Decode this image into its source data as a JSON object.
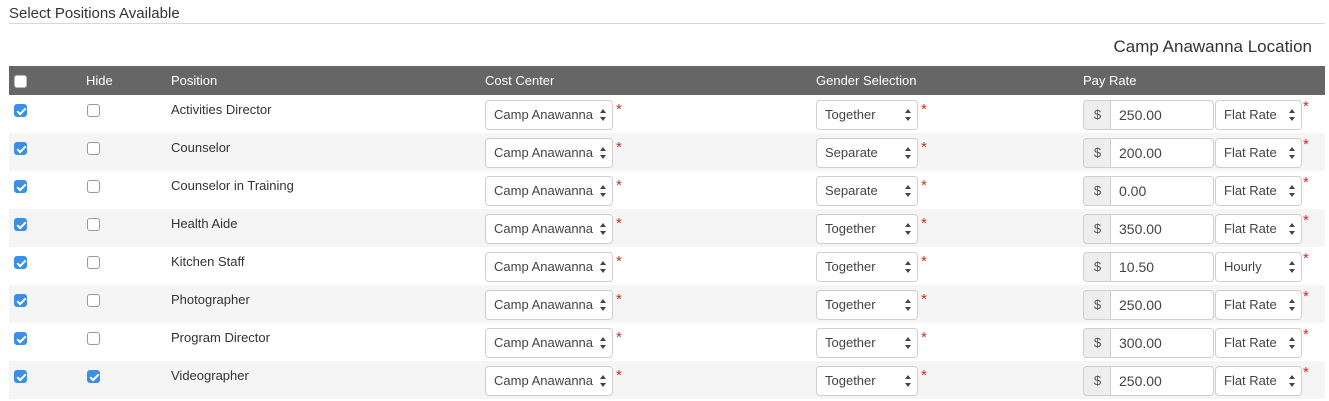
{
  "section_title": "Select Positions Available",
  "location_title": "Camp Anawanna Location",
  "columns": {
    "hide": "Hide",
    "position": "Position",
    "cost_center": "Cost Center",
    "gender": "Gender Selection",
    "pay_rate": "Pay Rate"
  },
  "select_all_checked": false,
  "currency_symbol": "$",
  "required_mark": "*",
  "rows": [
    {
      "selected": true,
      "hidden": false,
      "position": "Activities Director",
      "cost_center": "Camp Anawanna",
      "gender": "Together",
      "amount": "250.00",
      "rate_type": "Flat Rate"
    },
    {
      "selected": true,
      "hidden": false,
      "position": "Counselor",
      "cost_center": "Camp Anawanna",
      "gender": "Separate",
      "amount": "200.00",
      "rate_type": "Flat Rate"
    },
    {
      "selected": true,
      "hidden": false,
      "position": "Counselor in Training",
      "cost_center": "Camp Anawanna",
      "gender": "Separate",
      "amount": "0.00",
      "rate_type": "Flat Rate"
    },
    {
      "selected": true,
      "hidden": false,
      "position": "Health Aide",
      "cost_center": "Camp Anawanna",
      "gender": "Together",
      "amount": "350.00",
      "rate_type": "Flat Rate"
    },
    {
      "selected": true,
      "hidden": false,
      "position": "Kitchen Staff",
      "cost_center": "Camp Anawanna",
      "gender": "Together",
      "amount": "10.50",
      "rate_type": "Hourly"
    },
    {
      "selected": true,
      "hidden": false,
      "position": "Photographer",
      "cost_center": "Camp Anawanna",
      "gender": "Together",
      "amount": "250.00",
      "rate_type": "Flat Rate"
    },
    {
      "selected": true,
      "hidden": false,
      "position": "Program Director",
      "cost_center": "Camp Anawanna",
      "gender": "Together",
      "amount": "300.00",
      "rate_type": "Flat Rate"
    },
    {
      "selected": true,
      "hidden": true,
      "position": "Videographer",
      "cost_center": "Camp Anawanna",
      "gender": "Together",
      "amount": "250.00",
      "rate_type": "Flat Rate"
    }
  ],
  "colors": {
    "header_bg": "#666666",
    "checkbox_checked": "#3b8fe5",
    "required": "#c9302c",
    "row_alt": "#f5f5f5"
  }
}
